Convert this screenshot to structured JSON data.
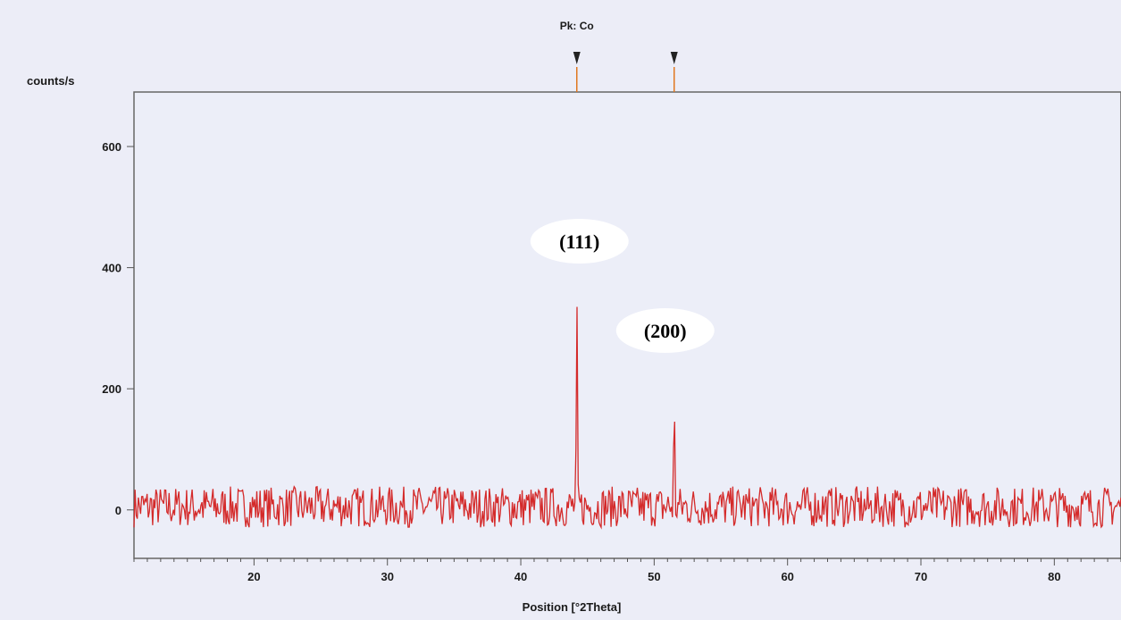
{
  "chart_data": {
    "type": "line",
    "ylabel": "counts/s",
    "xlabel": "Position [°2Theta]",
    "xlim": [
      11,
      85
    ],
    "ylim": [
      -80,
      690
    ],
    "x_ticks": [
      20,
      30,
      40,
      50,
      60,
      70,
      80
    ],
    "y_ticks": [
      0,
      200,
      400,
      600
    ],
    "reference_pattern": {
      "name": "Pk: Co",
      "positions": [
        44.2,
        51.5
      ]
    },
    "peaks": [
      {
        "label": "(111)",
        "x": 44.2,
        "y": 360
      },
      {
        "label": "(200)",
        "x": 51.5,
        "y": 210
      }
    ],
    "series": [
      {
        "color": "#d42a2a",
        "baseline": 5,
        "noise_amplitude": 45,
        "x_start": 11,
        "x_end": 85,
        "n_points": 900
      }
    ]
  },
  "colors": {
    "line": "#d42a2a",
    "reference": "#e07820",
    "axis": "#555555",
    "background": "#ecedf7"
  }
}
